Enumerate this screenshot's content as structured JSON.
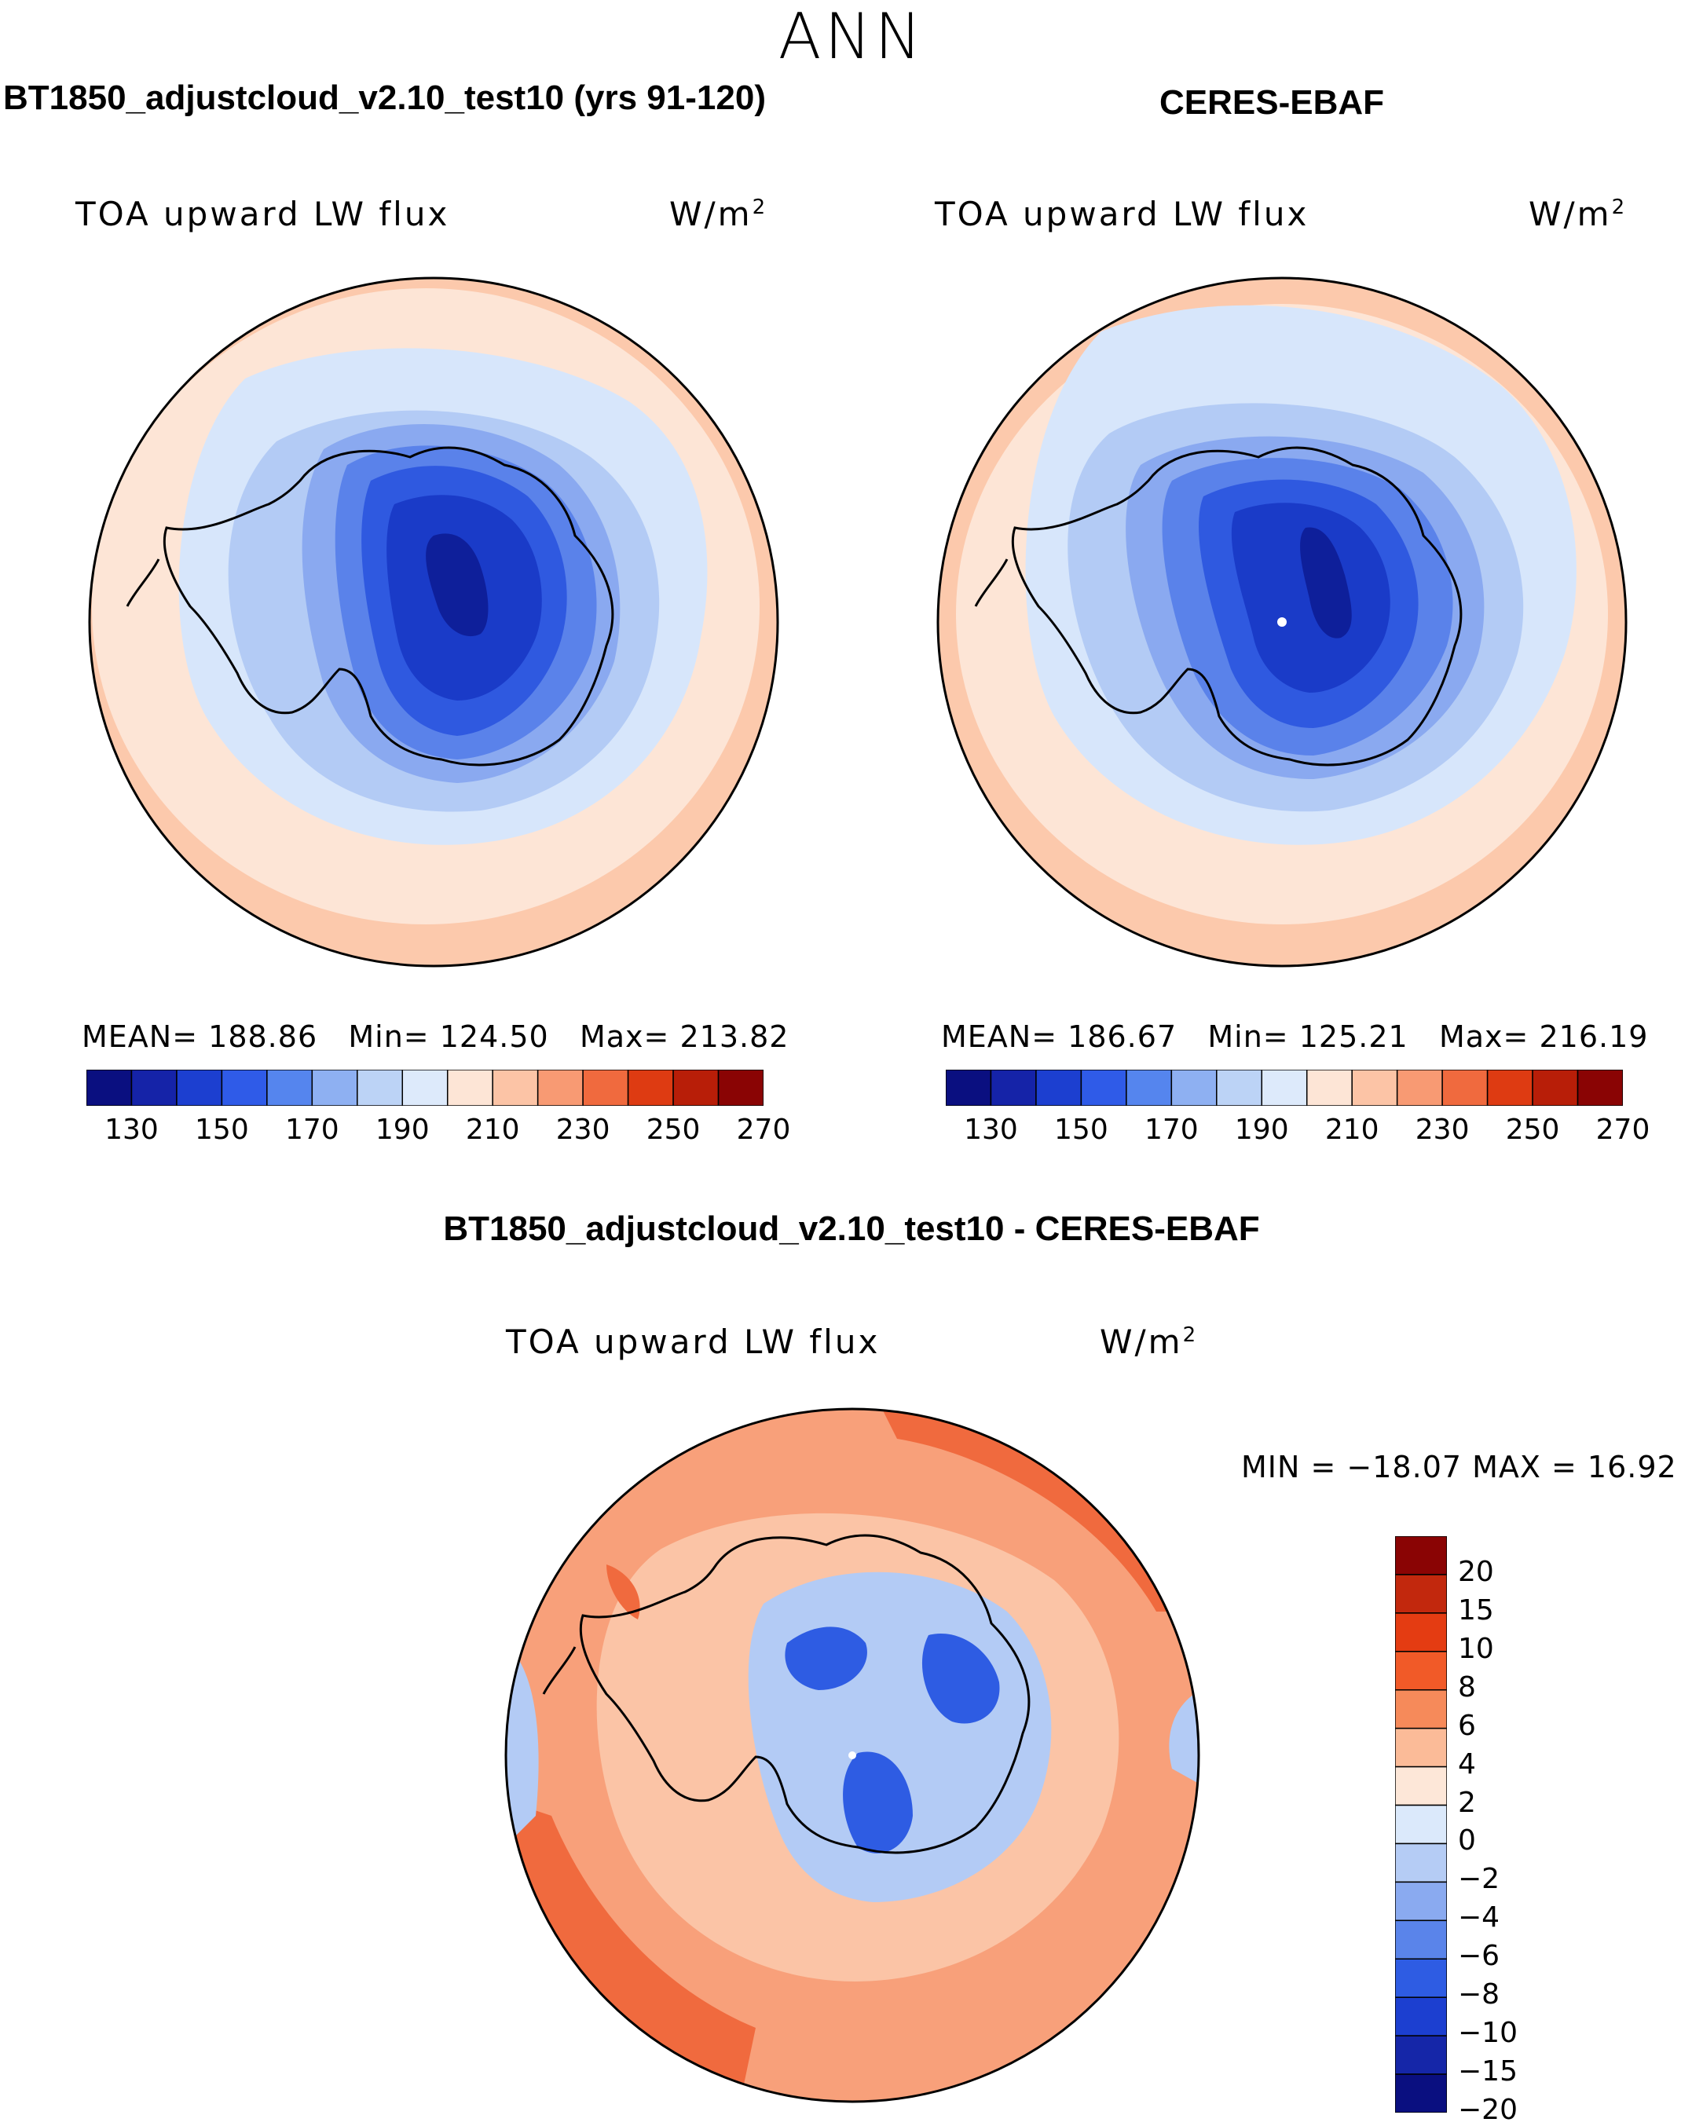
{
  "figure": {
    "season": "ANN",
    "panels": [
      {
        "title": "BT1850_adjustcloud_v2.10_test10 (yrs 91-120)",
        "variable": "TOA upward LW flux",
        "units_base": "W/m",
        "units_exp": "2",
        "stats": {
          "mean_label": "MEAN=",
          "mean": "188.86",
          "min_label": "Min=",
          "min": "124.50",
          "max_label": "Max=",
          "max": "213.82"
        }
      },
      {
        "title": "CERES-EBAF",
        "variable": "TOA upward LW flux",
        "units_base": "W/m",
        "units_exp": "2",
        "stats": {
          "mean_label": "MEAN=",
          "mean": "186.67",
          "min_label": "Min=",
          "min": "125.21",
          "max_label": "Max=",
          "max": "216.19"
        }
      },
      {
        "title": "BT1850_adjustcloud_v2.10_test10 - CERES-EBAF",
        "variable": "TOA upward LW flux",
        "units_base": "W/m",
        "units_exp": "2",
        "stats_text": "MIN = −18.07 MAX =   16.92"
      }
    ]
  },
  "colorbar_main": {
    "colors": [
      "#0a0f80",
      "#1523a8",
      "#1c3fd0",
      "#2f5be8",
      "#5585ee",
      "#8eb0f2",
      "#bcd3f6",
      "#ddeafb",
      "#fde5d6",
      "#fcc4a6",
      "#f89a73",
      "#f06a3e",
      "#de3b12",
      "#b81e08",
      "#8a0404"
    ],
    "tick_labels": [
      "130",
      "150",
      "170",
      "190",
      "210",
      "230",
      "250",
      "270"
    ]
  },
  "colorbar_diff": {
    "colors": [
      "#8a0404",
      "#c2280d",
      "#e43c12",
      "#f15a28",
      "#f68a5a",
      "#fbbb98",
      "#fde7d8",
      "#dbe9fb",
      "#b5ccf5",
      "#8aaaf0",
      "#5a84ea",
      "#2e5ce3",
      "#1c3fd0",
      "#1526a8",
      "#0a0f80"
    ],
    "tick_labels": [
      "20",
      "15",
      "10",
      "8",
      "6",
      "4",
      "2",
      "0",
      "−2",
      "−4",
      "−6",
      "−8",
      "−10",
      "−15",
      "−20"
    ]
  },
  "map_colors": {
    "ring_outer": "#fcc9ac",
    "ring_mid": "#fde5d6",
    "ocean_light_blue": "#d7e6fb",
    "coast_blue": "#b3cbf5",
    "ice_1": "#8aa9f0",
    "ice_2": "#5a82ea",
    "ice_3": "#2f59e0",
    "ice_4": "#1a3bc8",
    "ice_5": "#0e1f9a",
    "diff_bg": "#f8a07a",
    "diff_light": "#fbc4a6",
    "diff_strong": "#f06a3e",
    "diff_blue": "#b3cbf5",
    "diff_blue_deep": "#2e5ce3"
  }
}
